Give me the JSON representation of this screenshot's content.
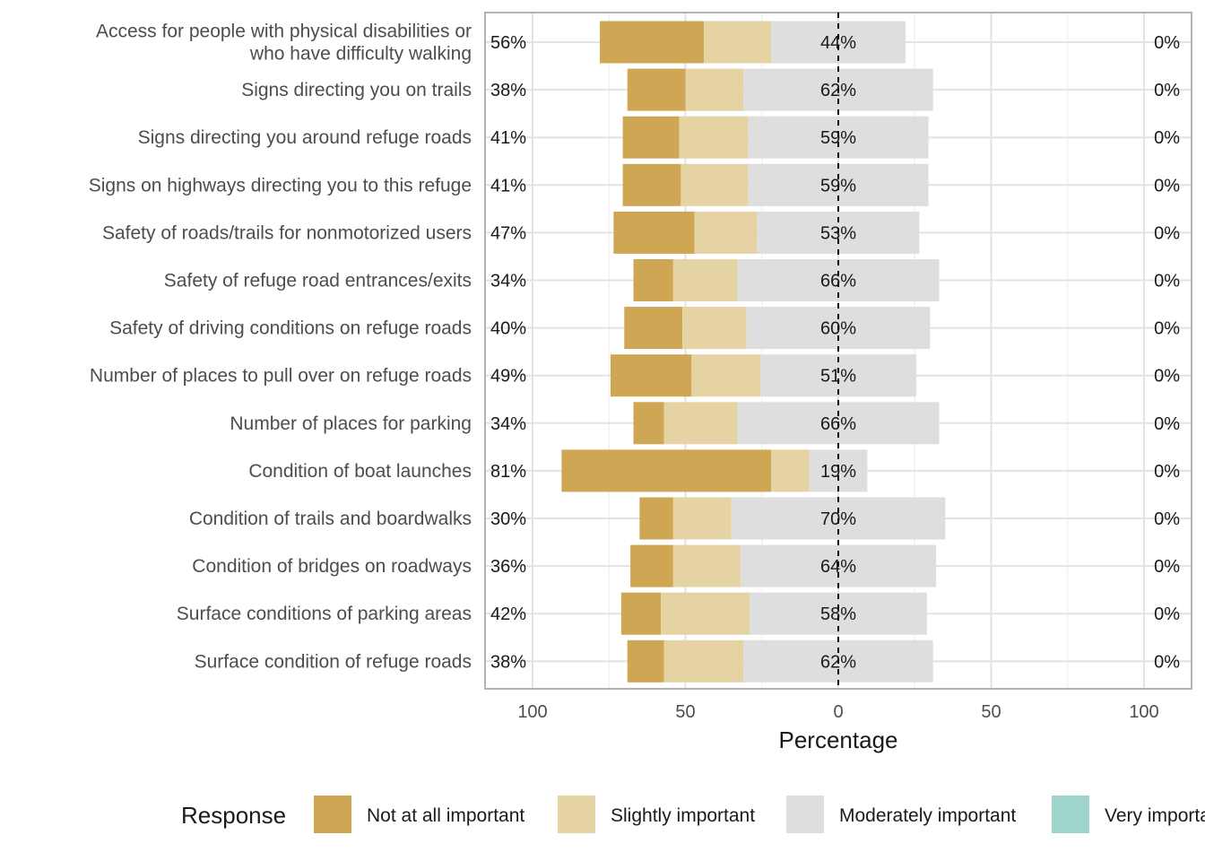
{
  "chart_data": {
    "type": "bar",
    "orientation": "horizontal-diverging",
    "xlabel": "Percentage",
    "x_tick_labels": [
      "100",
      "50",
      "0",
      "50",
      "100"
    ],
    "x_tick_values": [
      -100,
      -50,
      0,
      50,
      100
    ],
    "xlim": [
      -100,
      100
    ],
    "grid": true,
    "legend_position": "bottom",
    "legend_title": "Response",
    "colors": {
      "Not at all important": "#cfa653",
      "Slightly important": "#e6d3a4",
      "Moderately important": "#dedede",
      "Very important": "#9fd4cb"
    },
    "series": [
      {
        "name": "Not at all important"
      },
      {
        "name": "Slightly important"
      },
      {
        "name": "Moderately important"
      },
      {
        "name": "Very important"
      }
    ],
    "categories": [
      "Access for people with physical disabilities or\nwho have difficulty walking",
      "Signs directing you on trails",
      "Signs directing you around refuge roads",
      "Signs on highways directing you to this refuge",
      "Safety of roads/trails for nonmotorized users",
      "Safety of refuge road entrances/exits",
      "Safety of driving conditions on refuge roads",
      "Number of places to pull over on refuge roads",
      "Number of places for parking",
      "Condition of boat launches",
      "Condition of trails and boardwalks",
      "Condition of bridges on roadways",
      "Surface conditions of parking areas",
      "Surface condition of refuge roads"
    ],
    "rows": [
      {
        "not_at_all": 34,
        "slightly": 22,
        "moderately": 44,
        "very": 0,
        "left_label": "56%",
        "center_label": "44%",
        "right_label": "0%"
      },
      {
        "not_at_all": 19,
        "slightly": 19,
        "moderately": 62,
        "very": 0,
        "left_label": "38%",
        "center_label": "62%",
        "right_label": "0%"
      },
      {
        "not_at_all": 18.5,
        "slightly": 22.5,
        "moderately": 59,
        "very": 0,
        "left_label": "41%",
        "center_label": "59%",
        "right_label": "0%"
      },
      {
        "not_at_all": 19,
        "slightly": 22,
        "moderately": 59,
        "very": 0,
        "left_label": "41%",
        "center_label": "59%",
        "right_label": "0%"
      },
      {
        "not_at_all": 26.5,
        "slightly": 20.5,
        "moderately": 53,
        "very": 0,
        "left_label": "47%",
        "center_label": "53%",
        "right_label": "0%"
      },
      {
        "not_at_all": 13,
        "slightly": 21,
        "moderately": 66,
        "very": 0,
        "left_label": "34%",
        "center_label": "66%",
        "right_label": "0%"
      },
      {
        "not_at_all": 19,
        "slightly": 21,
        "moderately": 60,
        "very": 0,
        "left_label": "40%",
        "center_label": "60%",
        "right_label": "0%"
      },
      {
        "not_at_all": 26.5,
        "slightly": 22.5,
        "moderately": 51,
        "very": 0,
        "left_label": "49%",
        "center_label": "51%",
        "right_label": "0%"
      },
      {
        "not_at_all": 10,
        "slightly": 24,
        "moderately": 66,
        "very": 0,
        "left_label": "34%",
        "center_label": "66%",
        "right_label": "0%"
      },
      {
        "not_at_all": 68.5,
        "slightly": 12.5,
        "moderately": 19,
        "very": 0,
        "left_label": "81%",
        "center_label": "19%",
        "right_label": "0%"
      },
      {
        "not_at_all": 11,
        "slightly": 19,
        "moderately": 70,
        "very": 0,
        "left_label": "30%",
        "center_label": "70%",
        "right_label": "0%"
      },
      {
        "not_at_all": 14,
        "slightly": 22,
        "moderately": 64,
        "very": 0,
        "left_label": "36%",
        "center_label": "64%",
        "right_label": "0%"
      },
      {
        "not_at_all": 13,
        "slightly": 29,
        "moderately": 58,
        "very": 0,
        "left_label": "42%",
        "center_label": "58%",
        "right_label": "0%"
      },
      {
        "not_at_all": 12,
        "slightly": 26,
        "moderately": 62,
        "very": 0,
        "left_label": "38%",
        "center_label": "62%",
        "right_label": "0%"
      }
    ]
  }
}
